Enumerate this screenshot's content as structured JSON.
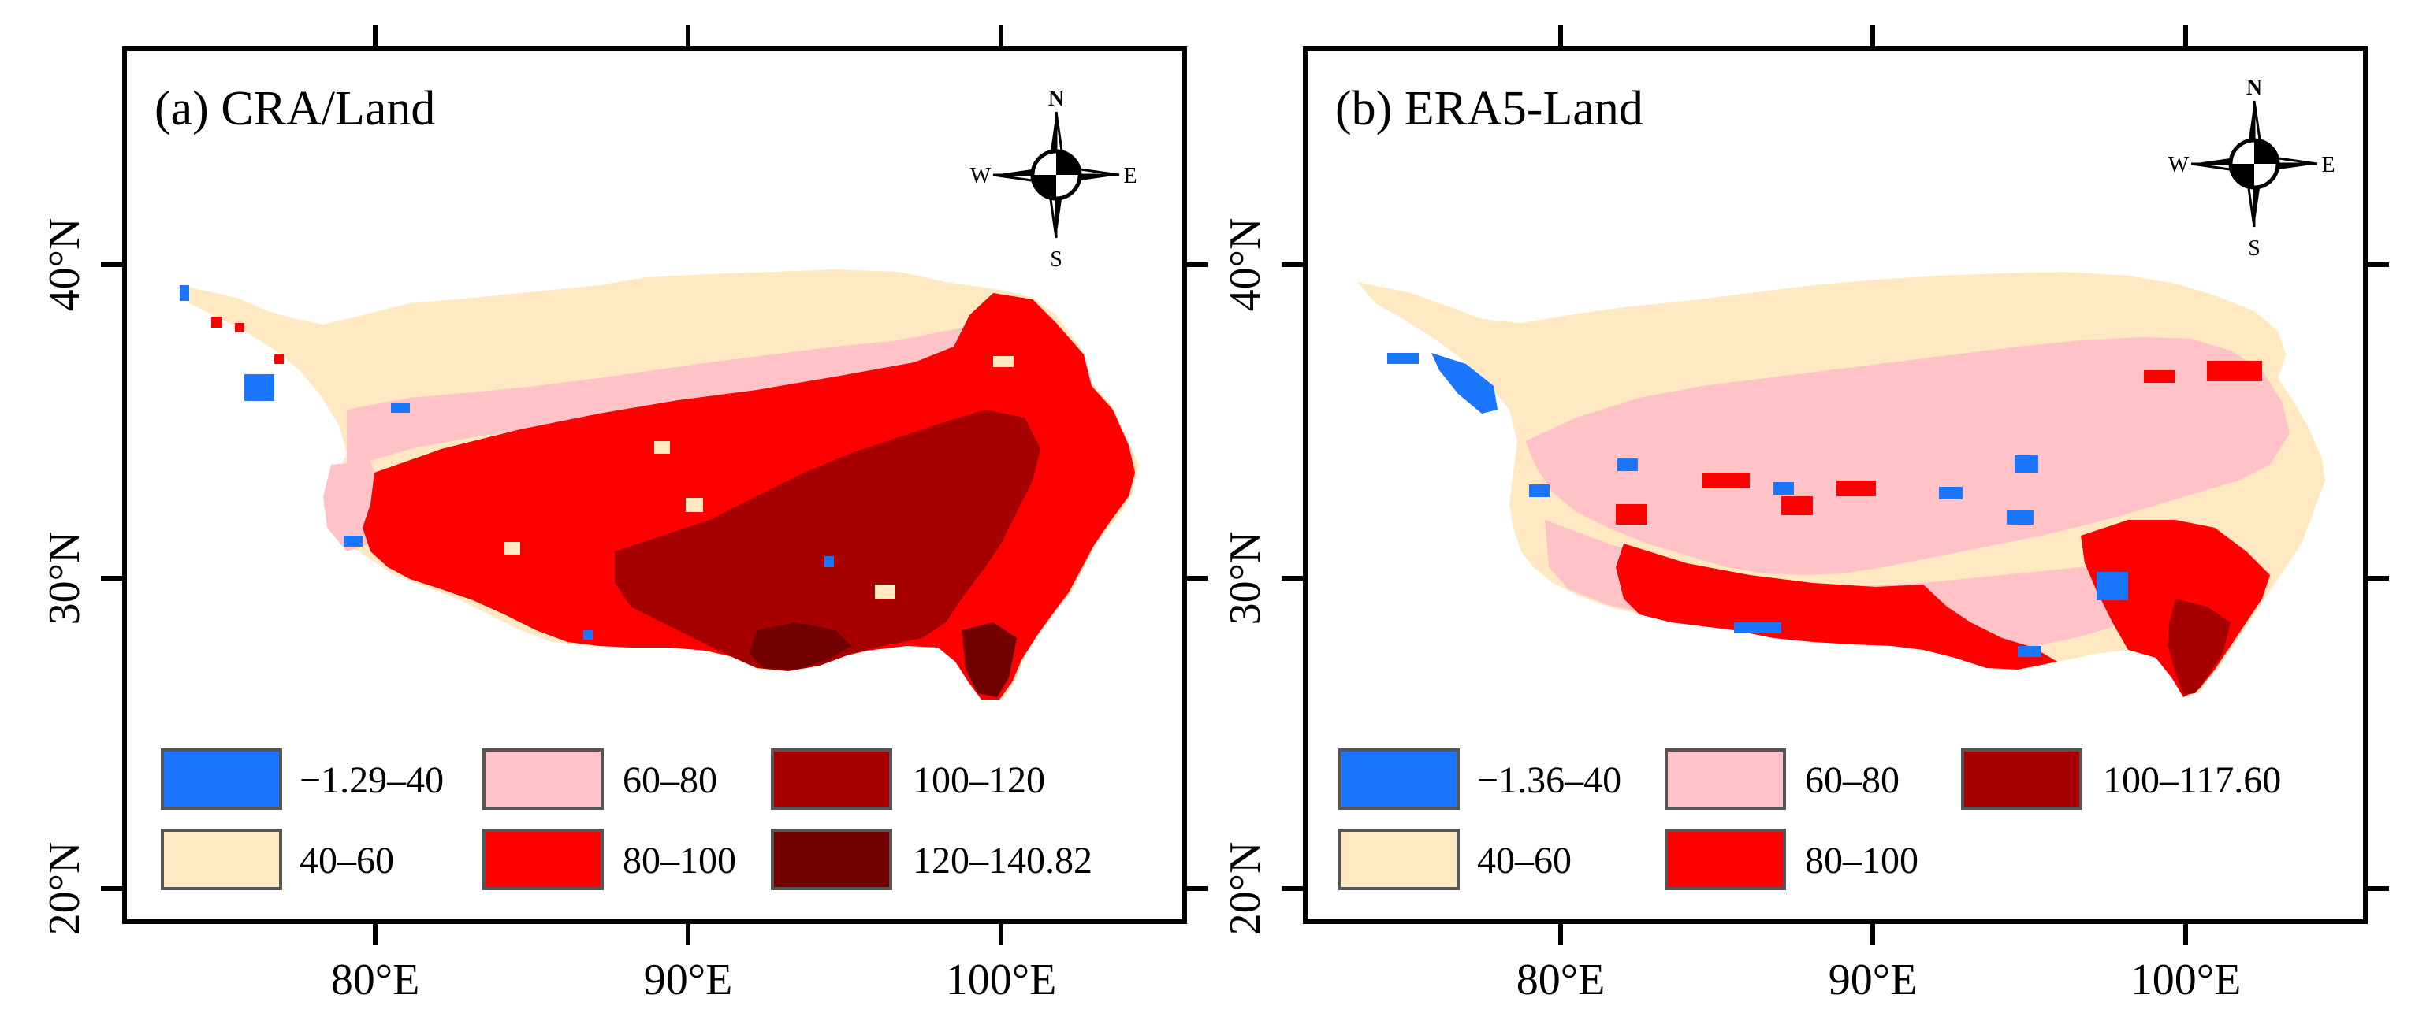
{
  "figure": {
    "x_ticks": [
      "80°E",
      "90°E",
      "100°E"
    ],
    "y_ticks": [
      "40°N",
      "30°N",
      "20°N"
    ]
  },
  "panels": [
    {
      "id": "a",
      "title": "(a) CRA/Land",
      "compass": {
        "n": "N",
        "s": "S",
        "e": "E",
        "w": "W"
      },
      "legend": [
        {
          "label": "−1.29–40",
          "color": "#1a75ff"
        },
        {
          "label": "40–60",
          "color": "#ffe8c2"
        },
        {
          "label": "60–80",
          "color": "#ffc2c7"
        },
        {
          "label": "80–100",
          "color": "#ff0000"
        },
        {
          "label": "100–120",
          "color": "#a60000"
        },
        {
          "label": "120–140.82",
          "color": "#730000"
        }
      ]
    },
    {
      "id": "b",
      "title": "(b) ERA5-Land",
      "compass": {
        "n": "N",
        "s": "S",
        "e": "E",
        "w": "W"
      },
      "legend": [
        {
          "label": "−1.36–40",
          "color": "#1a75ff"
        },
        {
          "label": "40–60",
          "color": "#ffe8c2"
        },
        {
          "label": "60–80",
          "color": "#ffc2c7"
        },
        {
          "label": "80–100",
          "color": "#ff0000"
        },
        {
          "label": "100–117.60",
          "color": "#a60000"
        }
      ]
    }
  ]
}
